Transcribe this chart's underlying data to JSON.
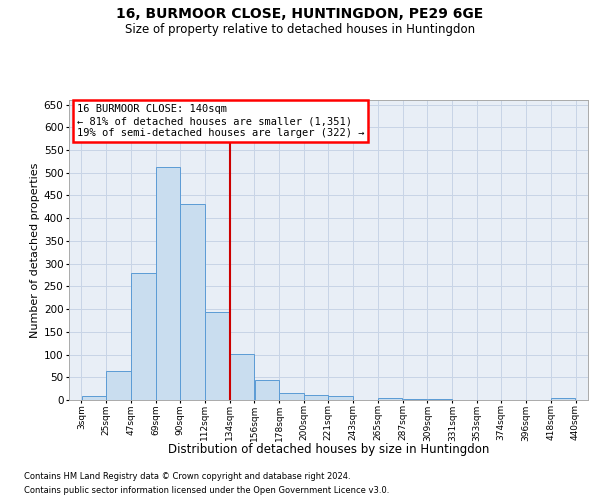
{
  "title": "16, BURMOOR CLOSE, HUNTINGDON, PE29 6GE",
  "subtitle": "Size of property relative to detached houses in Huntingdon",
  "xlabel": "Distribution of detached houses by size in Huntingdon",
  "ylabel": "Number of detached properties",
  "footnote1": "Contains HM Land Registry data © Crown copyright and database right 2024.",
  "footnote2": "Contains public sector information licensed under the Open Government Licence v3.0.",
  "annotation_line1": "16 BURMOOR CLOSE: 140sqm",
  "annotation_line2": "← 81% of detached houses are smaller (1,351)",
  "annotation_line3": "19% of semi-detached houses are larger (322) →",
  "bar_color": "#c9ddef",
  "bar_edge_color": "#5b9bd5",
  "grid_color": "#c8d4e6",
  "background_color": "#e8eef6",
  "vline_color": "#cc0000",
  "vline_x_bin_idx": 6,
  "bins": [
    3,
    25,
    47,
    69,
    90,
    112,
    134,
    156,
    178,
    200,
    221,
    243,
    265,
    287,
    309,
    331,
    353,
    374,
    396,
    418,
    440
  ],
  "tick_labels": [
    "3sqm",
    "25sqm",
    "47sqm",
    "69sqm",
    "90sqm",
    "112sqm",
    "134sqm",
    "156sqm",
    "178sqm",
    "200sqm",
    "221sqm",
    "243sqm",
    "265sqm",
    "287sqm",
    "309sqm",
    "331sqm",
    "353sqm",
    "374sqm",
    "396sqm",
    "418sqm",
    "440sqm"
  ],
  "counts": [
    8,
    63,
    280,
    512,
    432,
    193,
    101,
    45,
    15,
    10,
    8,
    0,
    5,
    3,
    3,
    0,
    0,
    0,
    0,
    5
  ],
  "ylim": [
    0,
    660
  ],
  "yticks": [
    0,
    50,
    100,
    150,
    200,
    250,
    300,
    350,
    400,
    450,
    500,
    550,
    600,
    650
  ],
  "title_fontsize": 10,
  "subtitle_fontsize": 8.5,
  "ylabel_fontsize": 8,
  "xlabel_fontsize": 8.5,
  "tick_fontsize": 6.5,
  "ytick_fontsize": 7.5,
  "footnote_fontsize": 6,
  "ann_fontsize": 7.5
}
